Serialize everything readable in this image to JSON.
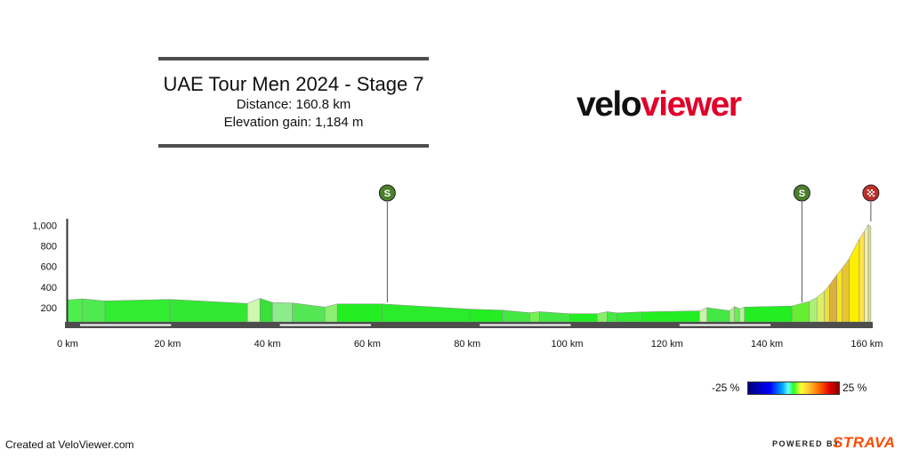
{
  "header": {
    "title": "UAE Tour Men 2024 - Stage 7",
    "distance": "Distance: 160.8 km",
    "elevation_gain": "Elevation gain: 1,184 m"
  },
  "logo": {
    "part1": "velo",
    "part2": "viewer",
    "color1": "#111111",
    "color2": "#e0002a"
  },
  "legend": {
    "min_label": "-25 %",
    "max_label": "25 %"
  },
  "footer": {
    "created": "Created at VeloViewer.com",
    "powered_by": "POWERED BY",
    "strava": "STRAVA"
  },
  "markers": [
    {
      "type": "sprint",
      "km": 64,
      "label": "S",
      "color": "#4a7f2c"
    },
    {
      "type": "sprint",
      "km": 147,
      "label": "S",
      "color": "#4a7f2c"
    },
    {
      "type": "finish",
      "km": 160.8,
      "label": "",
      "color": "#c0302a"
    }
  ],
  "chart_data": {
    "type": "area",
    "title": "UAE Tour Men 2024 - Stage 7",
    "xlabel": "",
    "ylabel": "",
    "x_unit": "km",
    "xlim": [
      0,
      161
    ],
    "ylim": [
      60,
      1040
    ],
    "x_ticks": [
      0,
      20,
      40,
      60,
      80,
      100,
      120,
      140,
      160
    ],
    "x_tick_labels": [
      "0 km",
      "20 km",
      "40 km",
      "60 km",
      "80 km",
      "100 km",
      "120 km",
      "140 km",
      "160 km"
    ],
    "y_ticks": [
      200,
      400,
      600,
      800,
      1000
    ],
    "y_tick_labels": [
      "200",
      "400",
      "600",
      "800",
      "1,000"
    ],
    "gradient_scale_percent": [
      -25,
      25
    ],
    "segments": [
      {
        "x0": 0,
        "x1": 3,
        "y0": 275,
        "y1": 285,
        "color": "#4cef4c"
      },
      {
        "x0": 3,
        "x1": 7.5,
        "y0": 285,
        "y1": 265,
        "color": "#4fea4f"
      },
      {
        "x0": 7.5,
        "x1": 20.5,
        "y0": 265,
        "y1": 280,
        "color": "#32ec32"
      },
      {
        "x0": 20.5,
        "x1": 36,
        "y0": 280,
        "y1": 240,
        "color": "#33e833"
      },
      {
        "x0": 36,
        "x1": 38.5,
        "y0": 240,
        "y1": 290,
        "color": "#cff8b0"
      },
      {
        "x0": 38.5,
        "x1": 41,
        "y0": 290,
        "y1": 250,
        "color": "#38e038"
      },
      {
        "x0": 41,
        "x1": 45,
        "y0": 250,
        "y1": 245,
        "color": "#8cec8c"
      },
      {
        "x0": 45,
        "x1": 51.5,
        "y0": 245,
        "y1": 205,
        "color": "#55e655"
      },
      {
        "x0": 51.5,
        "x1": 54,
        "y0": 205,
        "y1": 235,
        "color": "#8cef70"
      },
      {
        "x0": 54,
        "x1": 63,
        "y0": 235,
        "y1": 235,
        "color": "#22ee22"
      },
      {
        "x0": 63,
        "x1": 80.5,
        "y0": 235,
        "y1": 185,
        "color": "#2aec2a"
      },
      {
        "x0": 80.5,
        "x1": 87,
        "y0": 185,
        "y1": 175,
        "color": "#22ee22"
      },
      {
        "x0": 87,
        "x1": 92.5,
        "y0": 175,
        "y1": 150,
        "color": "#44e844"
      },
      {
        "x0": 92.5,
        "x1": 94.5,
        "y0": 150,
        "y1": 160,
        "color": "#77ee55"
      },
      {
        "x0": 94.5,
        "x1": 100.5,
        "y0": 160,
        "y1": 140,
        "color": "#44e844"
      },
      {
        "x0": 100.5,
        "x1": 106,
        "y0": 140,
        "y1": 140,
        "color": "#22ee22"
      },
      {
        "x0": 106,
        "x1": 108,
        "y0": 140,
        "y1": 160,
        "color": "#88ee66"
      },
      {
        "x0": 108,
        "x1": 110,
        "y0": 160,
        "y1": 148,
        "color": "#44e844"
      },
      {
        "x0": 110,
        "x1": 115,
        "y0": 148,
        "y1": 158,
        "color": "#33ec33"
      },
      {
        "x0": 115,
        "x1": 126.5,
        "y0": 158,
        "y1": 168,
        "color": "#22ee22"
      },
      {
        "x0": 126.5,
        "x1": 128,
        "y0": 168,
        "y1": 200,
        "color": "#c8f5a8"
      },
      {
        "x0": 128,
        "x1": 132.5,
        "y0": 200,
        "y1": 170,
        "color": "#44e844"
      },
      {
        "x0": 132.5,
        "x1": 133.5,
        "y0": 170,
        "y1": 210,
        "color": "#a9ef88"
      },
      {
        "x0": 133.5,
        "x1": 134.5,
        "y0": 210,
        "y1": 190,
        "color": "#66ee55"
      },
      {
        "x0": 134.5,
        "x1": 135.5,
        "y0": 190,
        "y1": 205,
        "color": "#bbf0a0"
      },
      {
        "x0": 135.5,
        "x1": 145,
        "y0": 205,
        "y1": 215,
        "color": "#22ee22"
      },
      {
        "x0": 145,
        "x1": 148.5,
        "y0": 215,
        "y1": 260,
        "color": "#66ee33"
      },
      {
        "x0": 148.5,
        "x1": 150,
        "y0": 260,
        "y1": 300,
        "color": "#aaf077"
      },
      {
        "x0": 150,
        "x1": 151.5,
        "y0": 300,
        "y1": 360,
        "color": "#dcee66"
      },
      {
        "x0": 151.5,
        "x1": 152.5,
        "y0": 360,
        "y1": 420,
        "color": "#e8e040"
      },
      {
        "x0": 152.5,
        "x1": 154,
        "y0": 420,
        "y1": 520,
        "color": "#ddb038"
      },
      {
        "x0": 154,
        "x1": 155,
        "y0": 520,
        "y1": 580,
        "color": "#f7e81e"
      },
      {
        "x0": 155,
        "x1": 156.5,
        "y0": 580,
        "y1": 680,
        "color": "#e7c62e"
      },
      {
        "x0": 156.5,
        "x1": 158.5,
        "y0": 680,
        "y1": 870,
        "color": "#ffee00"
      },
      {
        "x0": 158.5,
        "x1": 159.5,
        "y0": 870,
        "y1": 945,
        "color": "#ffe34a"
      },
      {
        "x0": 159.5,
        "x1": 160.3,
        "y0": 945,
        "y1": 1010,
        "color": "#f6ee9b"
      },
      {
        "x0": 160.3,
        "x1": 160.8,
        "y0": 1010,
        "y1": 990,
        "color": "#cfe8a0"
      }
    ]
  }
}
